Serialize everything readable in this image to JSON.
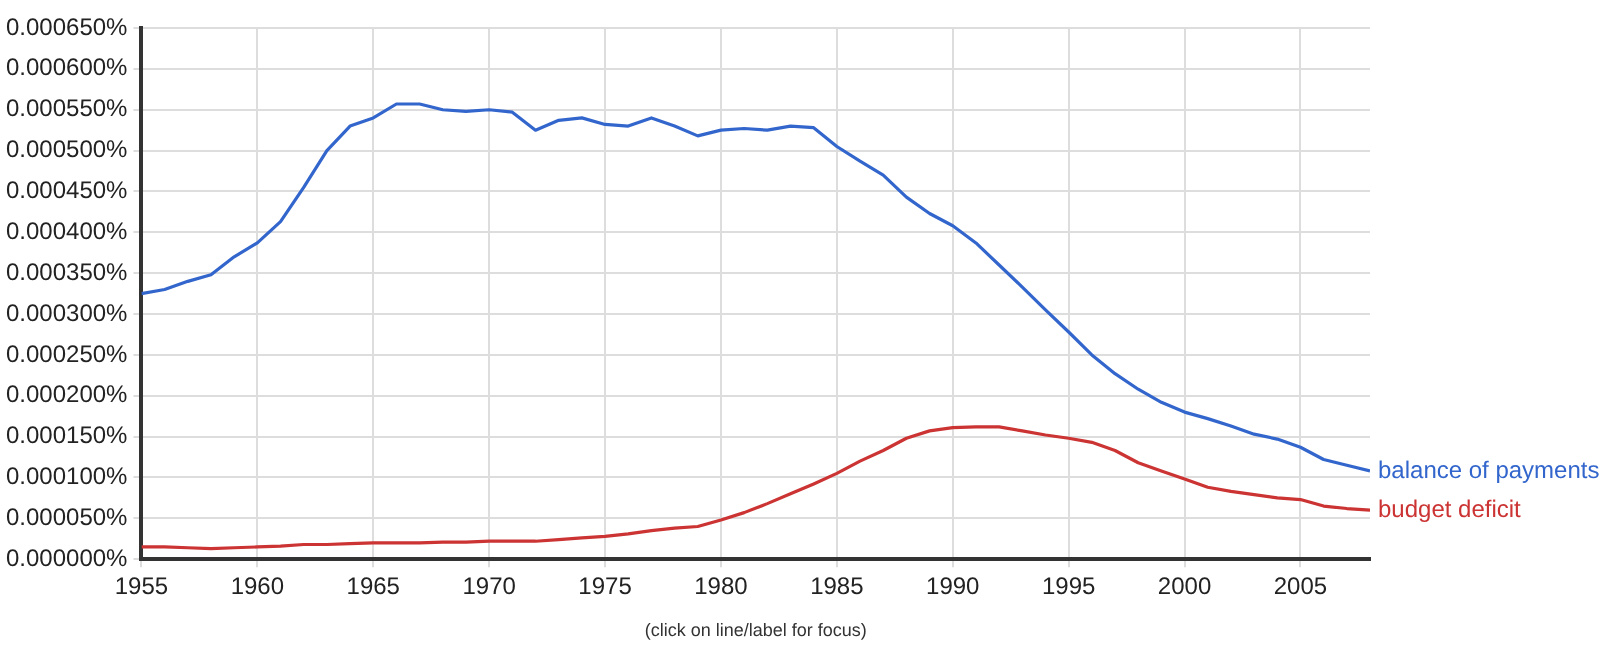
{
  "chart_data": {
    "type": "line",
    "x": [
      1955,
      1956,
      1957,
      1958,
      1959,
      1960,
      1961,
      1962,
      1963,
      1964,
      1965,
      1966,
      1967,
      1968,
      1969,
      1970,
      1971,
      1972,
      1973,
      1974,
      1975,
      1976,
      1977,
      1978,
      1979,
      1980,
      1981,
      1982,
      1983,
      1984,
      1985,
      1986,
      1987,
      1988,
      1989,
      1990,
      1991,
      1992,
      1993,
      1994,
      1995,
      1996,
      1997,
      1998,
      1999,
      2000,
      2001,
      2002,
      2003,
      2004,
      2005,
      2006,
      2007,
      2008
    ],
    "series": [
      {
        "name": "balance of payments",
        "color": "#3366cc",
        "values": [
          0.000325,
          0.00033,
          0.00034,
          0.000348,
          0.00037,
          0.000387,
          0.000413,
          0.000455,
          0.0005,
          0.00053,
          0.00054,
          0.000557,
          0.000557,
          0.00055,
          0.000548,
          0.00055,
          0.000547,
          0.000525,
          0.000537,
          0.00054,
          0.000532,
          0.00053,
          0.00054,
          0.00053,
          0.000518,
          0.000525,
          0.000527,
          0.000525,
          0.00053,
          0.000528,
          0.000505,
          0.000487,
          0.00047,
          0.000443,
          0.000423,
          0.000408,
          0.000387,
          0.00036,
          0.000333,
          0.000305,
          0.000278,
          0.00025,
          0.000227,
          0.000208,
          0.000192,
          0.00018,
          0.000172,
          0.000163,
          0.000153,
          0.000147,
          0.000137,
          0.000122,
          0.000115,
          0.000108
        ]
      },
      {
        "name": "budget deficit",
        "color": "#cc3333",
        "values": [
          1.5e-05,
          1.5e-05,
          1.4e-05,
          1.3e-05,
          1.4e-05,
          1.5e-05,
          1.6e-05,
          1.8e-05,
          1.8e-05,
          1.9e-05,
          2e-05,
          2e-05,
          2e-05,
          2.1e-05,
          2.1e-05,
          2.2e-05,
          2.2e-05,
          2.2e-05,
          2.4e-05,
          2.6e-05,
          2.8e-05,
          3.1e-05,
          3.5e-05,
          3.8e-05,
          4e-05,
          4.8e-05,
          5.7e-05,
          6.8e-05,
          8e-05,
          9.2e-05,
          0.000105,
          0.00012,
          0.000133,
          0.000148,
          0.000157,
          0.000161,
          0.000162,
          0.000162,
          0.000157,
          0.000152,
          0.000148,
          0.000143,
          0.000133,
          0.000118,
          0.000108,
          9.8e-05,
          8.8e-05,
          8.3e-05,
          7.9e-05,
          7.5e-05,
          7.3e-05,
          6.5e-05,
          6.2e-05,
          6e-05
        ]
      }
    ],
    "xlim": [
      1955,
      2008
    ],
    "xticks": [
      1955,
      1960,
      1965,
      1970,
      1975,
      1980,
      1985,
      1990,
      1995,
      2000,
      2005
    ],
    "ylim": [
      0,
      0.00065
    ],
    "yticks": [
      {
        "value": 0,
        "label": "0.000000%"
      },
      {
        "value": 5e-05,
        "label": "0.000050%"
      },
      {
        "value": 0.0001,
        "label": "0.000100%"
      },
      {
        "value": 0.00015,
        "label": "0.000150%"
      },
      {
        "value": 0.0002,
        "label": "0.000200%"
      },
      {
        "value": 0.00025,
        "label": "0.000250%"
      },
      {
        "value": 0.0003,
        "label": "0.000300%"
      },
      {
        "value": 0.00035,
        "label": "0.000350%"
      },
      {
        "value": 0.0004,
        "label": "0.000400%"
      },
      {
        "value": 0.00045,
        "label": "0.000450%"
      },
      {
        "value": 0.0005,
        "label": "0.000500%"
      },
      {
        "value": 0.00055,
        "label": "0.000550%"
      },
      {
        "value": 0.0006,
        "label": "0.000600%"
      },
      {
        "value": 0.00065,
        "label": "0.000650%"
      }
    ],
    "annotations": [
      "(click on line/label for focus)"
    ],
    "grid": true,
    "legend": false,
    "marker": "none",
    "line_style": "solid"
  }
}
